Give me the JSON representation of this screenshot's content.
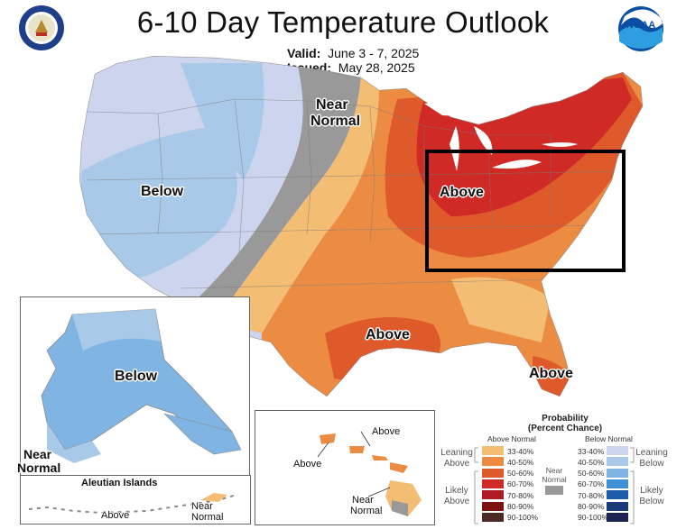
{
  "header": {
    "title": "6-10 Day Temperature Outlook",
    "valid_label": "Valid:",
    "valid_value": "June 3 - 7, 2025",
    "issued_label": "Issued:",
    "issued_value": "May 28, 2025",
    "left_seal": "department-of-commerce-seal",
    "right_logo": "noaa-logo"
  },
  "map_labels": {
    "conus_below": "Below",
    "conus_near_normal_1": "Near",
    "conus_near_normal_2": "Normal",
    "conus_above_east": "Above",
    "conus_above_texas": "Above",
    "conus_above_florida": "Above",
    "alaska_below": "Below",
    "alaska_near_1": "Near",
    "alaska_near_2": "Normal",
    "aleutian_title": "Aleutian Islands",
    "aleutian_above": "Above",
    "aleutian_near_1": "Near",
    "aleutian_near_2": "Normal",
    "hawaii_above_1": "Above",
    "hawaii_above_2": "Above",
    "hawaii_near_1": "Near",
    "hawaii_near_2": "Normal"
  },
  "legend": {
    "title_1": "Probability",
    "title_2": "(Percent Chance)",
    "above_header": "Above Normal",
    "below_header": "Below Normal",
    "leaning_above_1": "Leaning",
    "leaning_above_2": "Above",
    "likely_above_1": "Likely",
    "likely_above_2": "Above",
    "leaning_below_1": "Leaning",
    "leaning_below_2": "Below",
    "likely_below_1": "Likely",
    "likely_below_2": "Below",
    "near_normal_1": "Near",
    "near_normal_2": "Normal",
    "ranges": [
      "33-40%",
      "40-50%",
      "50-60%",
      "60-70%",
      "70-80%",
      "80-90%",
      "90-100%"
    ],
    "above_colors": [
      "#f3bd74",
      "#ec8c43",
      "#de5a2b",
      "#d02a27",
      "#ad1c25",
      "#7b1212",
      "#4a2a23"
    ],
    "below_colors": [
      "#cdd4ee",
      "#a9c9e8",
      "#7fb4e3",
      "#3e8fd6",
      "#1c5ca8",
      "#1a3d7a",
      "#1e2250"
    ],
    "near_normal_color": "#999999"
  },
  "highlight_box_color": "#000000"
}
